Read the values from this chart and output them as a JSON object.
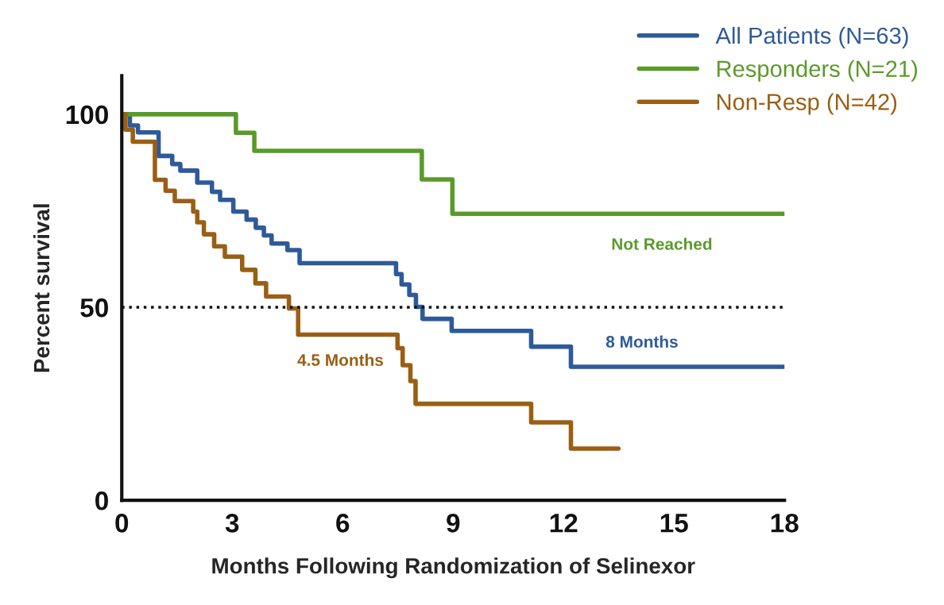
{
  "chart_data": {
    "type": "step",
    "xlabel": "Months Following Randomization of Selinexor",
    "ylabel": "Percent survival",
    "xlim": [
      0,
      18
    ],
    "xticks": [
      0,
      3,
      6,
      9,
      12,
      15,
      18
    ],
    "ylim": [
      0,
      110
    ],
    "yticks": [
      0,
      50,
      100
    ],
    "grid": false,
    "legend": "top right",
    "series": [
      {
        "name": "All Patients (N=63)",
        "color": "#2e5a9a",
        "x": [
          0,
          0.22,
          0.44,
          1.0,
          1.37,
          1.59,
          2.05,
          2.45,
          2.67,
          3.03,
          3.39,
          3.64,
          3.86,
          4.07,
          4.5,
          4.83,
          7.45,
          7.6,
          7.81,
          7.99,
          8.17,
          8.96,
          11.12,
          12.2,
          18
        ],
        "values": [
          100,
          97.1,
          95.3,
          89.2,
          87.1,
          85.4,
          82.3,
          79.9,
          77.8,
          74.8,
          72.7,
          70.6,
          68.6,
          66.5,
          64.8,
          61.4,
          58.6,
          55.9,
          53.2,
          50.1,
          47.0,
          43.9,
          39.8,
          34.6,
          34.6
        ]
      },
      {
        "name": "Responders (N=21)",
        "color": "#5a9a2a",
        "x": [
          0,
          3.1,
          3.6,
          8.15,
          8.98,
          18
        ],
        "values": [
          100,
          95.2,
          90.5,
          83.1,
          74.2,
          74.2
        ]
      },
      {
        "name": "Non-Resp (N=42)",
        "color": "#9a5f14",
        "x": [
          0,
          0.1,
          0.3,
          0.9,
          1.19,
          1.44,
          1.94,
          2.05,
          2.23,
          2.51,
          2.8,
          3.27,
          3.63,
          3.92,
          4.54,
          4.79,
          7.49,
          7.63,
          7.84,
          7.98,
          11.12,
          12.2,
          13.49
        ],
        "values": [
          100,
          96.0,
          92.9,
          83.0,
          80.2,
          77.5,
          74.8,
          72.0,
          68.9,
          65.8,
          63.1,
          59.7,
          56.2,
          52.8,
          49.7,
          42.9,
          39.4,
          35.0,
          30.9,
          25.0,
          20.2,
          13.4,
          13.4
        ]
      }
    ],
    "ref_lines": [
      {
        "axis": "y",
        "value": 50,
        "color": "#111111",
        "line_style": "dotted"
      }
    ],
    "annotations": [
      "Not Reached",
      "8 Months",
      "4.5 Months"
    ]
  }
}
